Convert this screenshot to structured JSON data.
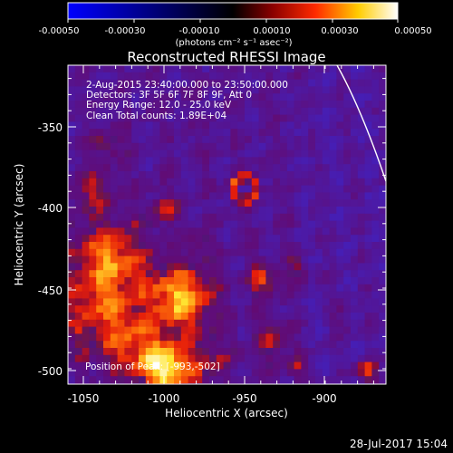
{
  "colorbar": {
    "tick_labels": [
      "-0.00050",
      "-0.00030",
      "-0.00010",
      "0.00010",
      "0.00030",
      "0.00050"
    ],
    "unit_label": "(photons cm⁻² s⁻¹ asec⁻²)",
    "colors": [
      "#0000ff",
      "#000000",
      "#8a0000",
      "#ff2a00",
      "#ffcc00",
      "#ffffff"
    ]
  },
  "image": {
    "title": "Reconstructed RHESSI Image",
    "info_lines": [
      "2-Aug-2015 23:40:00.000 to 23:50:00.000",
      "Detectors: 3F 5F 6F 7F 8F 9F, Att 0",
      "Energy Range: 12.0 - 25.0 keV",
      "Clean    Total counts: 1.89E+04"
    ],
    "position_text": "Position of Peak: [-993,-502]",
    "xlabel": "Heliocentric X (arcsec)",
    "ylabel": "Heliocentric Y (arcsec)",
    "x_ticks": [
      "-1050",
      "-1000",
      "-950",
      "-900"
    ],
    "y_ticks": [
      "-350",
      "-400",
      "-450",
      "-500"
    ],
    "x_range": [
      -1058,
      -862
    ],
    "y_range": [
      -506,
      -320
    ],
    "limb_curve_color": "#ffffff"
  },
  "footer": {
    "timestamp": "28-Jul-2017 15:04"
  }
}
